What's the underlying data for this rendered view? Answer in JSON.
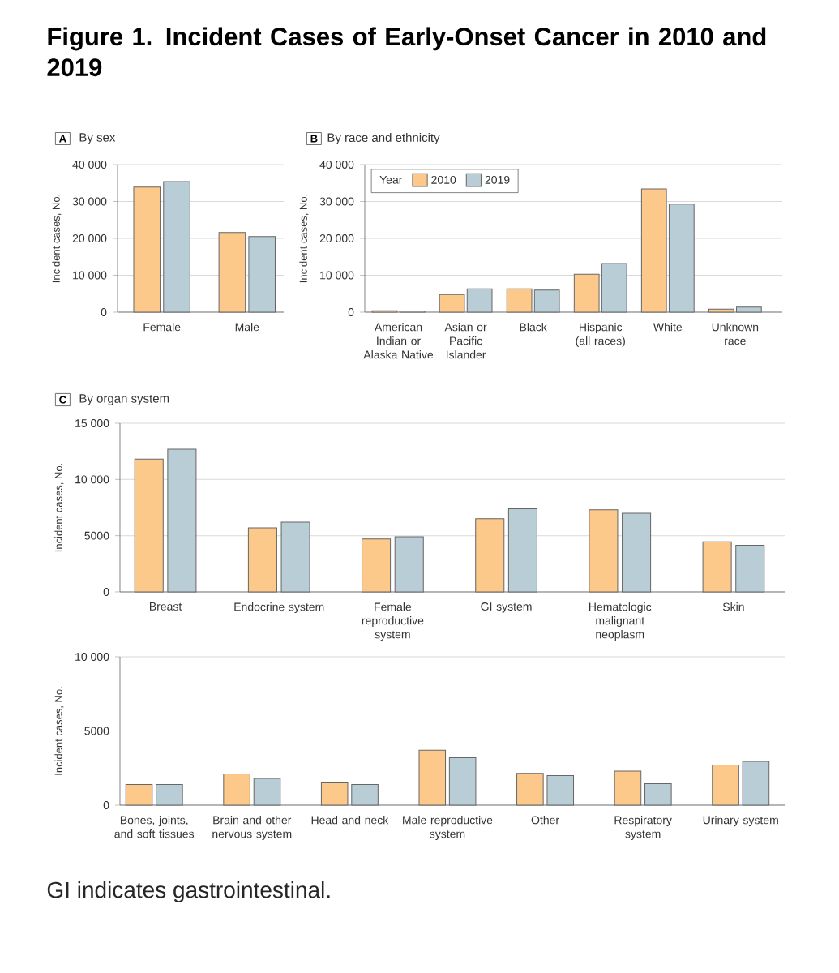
{
  "chart_data": [
    {
      "type": "bar",
      "title": "Figure 1.  Incident Cases of Early-Onset Cancer in 2010 and 2019",
      "subtitle": "By sex",
      "annotations": [
        "A"
      ],
      "ylabel": "Incident cases, No.",
      "categories": [
        "Female",
        "Male"
      ],
      "series": [
        {
          "color": "#fdc98a",
          "values": [
            33900,
            21600
          ]
        },
        {
          "color": "#b9cdd6",
          "values": [
            35400,
            20500
          ]
        }
      ],
      "ylim": [
        0,
        40000
      ],
      "yticks": [
        0,
        {
          "value": 10000,
          "label": "10 000"
        },
        {
          "value": 20000,
          "label": "20 000"
        },
        {
          "value": 30000,
          "label": "30 000"
        },
        {
          "value": 40000,
          "label": "40 000"
        }
      ],
      "grid": "y"
    },
    {
      "type": "bar",
      "subtitle": "By race and ethnicity",
      "annotations": [
        "B"
      ],
      "ylabel": "Incident cases, No.",
      "legend_title": "Year",
      "legend": "top left",
      "categories": [
        "American Indian or Alaska Native",
        "Asian or Pacific Islander",
        "Black",
        "Hispanic (all races)",
        "White",
        "Unknown race"
      ],
      "series": [
        {
          "name": "2010",
          "color": "#fdc98a",
          "values": [
            400,
            4800,
            6300,
            10300,
            33400,
            850
          ]
        },
        {
          "name": "2019",
          "color": "#b9cdd6",
          "values": [
            350,
            6300,
            6000,
            13200,
            29300,
            1400
          ]
        }
      ],
      "ylim": [
        0,
        40000
      ],
      "yticks": [
        0,
        {
          "value": 10000,
          "label": "10 000"
        },
        {
          "value": 20000,
          "label": "20 000"
        },
        {
          "value": 30000,
          "label": "30 000"
        },
        {
          "value": 40000,
          "label": "40 000"
        }
      ],
      "grid": "y"
    },
    {
      "type": "bar",
      "subtitle": "By organ system",
      "annotations": [
        "C"
      ],
      "ylabel": "Incident cases, No.",
      "categories": [
        "Breast",
        "Endocrine system",
        "Female reproductive system",
        "GI system",
        "Hematologic malignant neoplasm",
        "Skin"
      ],
      "series": [
        {
          "color": "#fdc98a",
          "values": [
            11800,
            5700,
            4700,
            6500,
            7300,
            4450
          ]
        },
        {
          "color": "#b9cdd6",
          "values": [
            12700,
            6200,
            4900,
            7400,
            7000,
            4150
          ]
        }
      ],
      "ylim": [
        0,
        15000
      ],
      "yticks": [
        0,
        5000,
        {
          "value": 10000,
          "label": "10 000"
        },
        {
          "value": 15000,
          "label": "15 000"
        }
      ],
      "grid": "y"
    },
    {
      "type": "bar",
      "annotations": [
        "GI indicates gastrointestinal."
      ],
      "ylabel": "Incident cases, No.",
      "categories": [
        "Bones, joints, and soft tissues",
        "Brain and other nervous system",
        "Head and neck",
        "Male reproductive system",
        "Other",
        "Respiratory system",
        "Urinary system"
      ],
      "series": [
        {
          "color": "#fdc98a",
          "values": [
            1400,
            2100,
            1500,
            3700,
            2150,
            2300,
            2700
          ]
        },
        {
          "color": "#b9cdd6",
          "values": [
            1400,
            1800,
            1400,
            3200,
            2000,
            1450,
            2950
          ]
        }
      ],
      "ylim": [
        0,
        10000
      ],
      "yticks": [
        0,
        5000,
        {
          "value": 10000,
          "label": "10 000"
        }
      ],
      "grid": "y"
    }
  ]
}
